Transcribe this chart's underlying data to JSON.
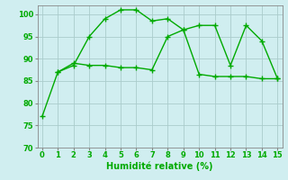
{
  "line1_x": [
    0,
    1,
    2,
    3,
    4,
    5,
    6,
    7,
    8,
    9,
    10,
    11,
    12,
    13,
    14,
    15
  ],
  "line1_y": [
    77,
    87,
    88.5,
    95,
    99,
    101,
    101,
    98.5,
    99,
    96.5,
    97.5,
    97.5,
    88.5,
    97.5,
    94,
    85.5
  ],
  "line2_x": [
    1,
    2,
    3,
    4,
    5,
    6,
    7,
    8,
    9,
    10,
    11,
    12,
    13,
    14,
    15
  ],
  "line2_y": [
    87,
    89,
    88.5,
    88.5,
    88,
    88,
    87.5,
    95,
    96.5,
    86.5,
    86,
    86,
    86,
    85.5,
    85.5
  ],
  "line_color": "#00aa00",
  "bg_color": "#d0eef0",
  "grid_color": "#aacccc",
  "xlabel": "Humidité relative (%)",
  "ylim": [
    70,
    102
  ],
  "xlim": [
    -0.3,
    15.3
  ],
  "yticks": [
    70,
    75,
    80,
    85,
    90,
    95,
    100
  ],
  "xticks": [
    0,
    1,
    2,
    3,
    4,
    5,
    6,
    7,
    8,
    9,
    10,
    11,
    12,
    13,
    14,
    15
  ],
  "marker": "+",
  "markersize": 4,
  "linewidth": 1.0,
  "xlabel_fontsize": 7,
  "tick_fontsize": 6
}
